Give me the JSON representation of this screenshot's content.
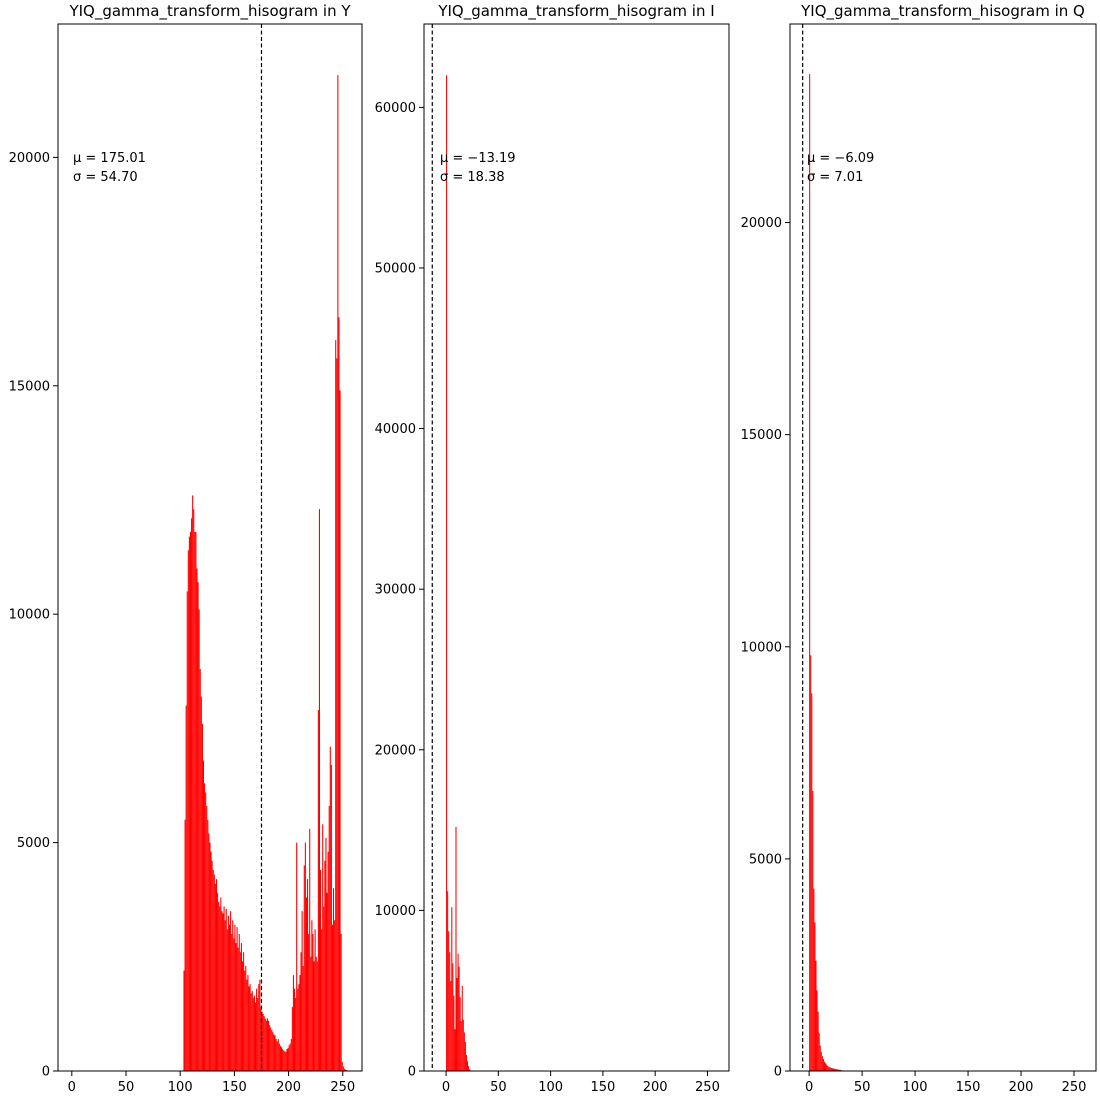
{
  "chart_data": [
    {
      "type": "bar",
      "title": "YIQ_gamma_transform_hisogram in Y",
      "xlim": [
        -12.75,
        267.75
      ],
      "ylim": [
        0,
        22920
      ],
      "xticks": [
        0,
        50,
        100,
        150,
        200,
        250
      ],
      "yticks": [
        0,
        5000,
        10000,
        15000,
        20000
      ],
      "mean": 175.01,
      "annotation": [
        "μ = 175.01",
        "σ = 54.70"
      ],
      "bar_color": "#ff0000",
      "mean_line": "dashed",
      "bins": [
        [
          103,
          2200
        ],
        [
          104,
          5500
        ],
        [
          105,
          8000
        ],
        [
          106,
          10500
        ],
        [
          107,
          11400
        ],
        [
          108,
          11700
        ],
        [
          109,
          11800
        ],
        [
          110,
          12100
        ],
        [
          111,
          12600
        ],
        [
          112,
          12300
        ],
        [
          113,
          11800
        ],
        [
          114,
          11800
        ],
        [
          115,
          11000
        ],
        [
          116,
          10700
        ],
        [
          117,
          10100
        ],
        [
          118,
          8800
        ],
        [
          119,
          8200
        ],
        [
          120,
          7600
        ],
        [
          121,
          6800
        ],
        [
          122,
          6300
        ],
        [
          123,
          6100
        ],
        [
          124,
          5800
        ],
        [
          125,
          5500
        ],
        [
          126,
          5200
        ],
        [
          127,
          5000
        ],
        [
          128,
          4800
        ],
        [
          129,
          4600
        ],
        [
          130,
          4400
        ],
        [
          131,
          4300
        ],
        [
          132,
          4100
        ],
        [
          133,
          4200
        ],
        [
          134,
          3900
        ],
        [
          135,
          3700
        ],
        [
          136,
          3600
        ],
        [
          137,
          3800
        ],
        [
          138,
          3500
        ],
        [
          139,
          3450
        ],
        [
          140,
          3600
        ],
        [
          141,
          3300
        ],
        [
          142,
          3550
        ],
        [
          143,
          3100
        ],
        [
          144,
          3400
        ],
        [
          145,
          3200
        ],
        [
          146,
          3500
        ],
        [
          147,
          3000
        ],
        [
          148,
          3300
        ],
        [
          149,
          2900
        ],
        [
          150,
          3200
        ],
        [
          151,
          2800
        ],
        [
          152,
          3150
        ],
        [
          153,
          2700
        ],
        [
          154,
          3000
        ],
        [
          155,
          2600
        ],
        [
          156,
          2800
        ],
        [
          157,
          2400
        ],
        [
          158,
          2600
        ],
        [
          159,
          2200
        ],
        [
          160,
          2300
        ],
        [
          161,
          2000
        ],
        [
          162,
          2100
        ],
        [
          163,
          1850
        ],
        [
          164,
          1900
        ],
        [
          165,
          1700
        ],
        [
          166,
          1750
        ],
        [
          167,
          1600
        ],
        [
          168,
          1650
        ],
        [
          169,
          1500
        ],
        [
          170,
          1800
        ],
        [
          171,
          1600
        ],
        [
          172,
          1900
        ],
        [
          173,
          2000
        ],
        [
          174,
          1400
        ],
        [
          175,
          1300
        ],
        [
          176,
          1250
        ],
        [
          177,
          1200
        ],
        [
          178,
          1150
        ],
        [
          179,
          1100
        ],
        [
          180,
          1150
        ],
        [
          181,
          1100
        ],
        [
          182,
          1000
        ],
        [
          183,
          950
        ],
        [
          184,
          900
        ],
        [
          185,
          850
        ],
        [
          186,
          800
        ],
        [
          187,
          780
        ],
        [
          188,
          700
        ],
        [
          189,
          650
        ],
        [
          190,
          700
        ],
        [
          191,
          600
        ],
        [
          192,
          550
        ],
        [
          193,
          520
        ],
        [
          194,
          480
        ],
        [
          195,
          450
        ],
        [
          196,
          430
        ],
        [
          197,
          420
        ],
        [
          198,
          480
        ],
        [
          199,
          500
        ],
        [
          200,
          560
        ],
        [
          201,
          600
        ],
        [
          202,
          700
        ],
        [
          203,
          1400
        ],
        [
          204,
          2100
        ],
        [
          205,
          1800
        ],
        [
          206,
          1600
        ],
        [
          207,
          5000
        ],
        [
          208,
          1800
        ],
        [
          209,
          1900
        ],
        [
          210,
          2100
        ],
        [
          211,
          2600
        ],
        [
          212,
          3500
        ],
        [
          213,
          2300
        ],
        [
          214,
          4500
        ],
        [
          215,
          5000
        ],
        [
          216,
          3800
        ],
        [
          217,
          4200
        ],
        [
          218,
          3000
        ],
        [
          219,
          5300
        ],
        [
          220,
          2500
        ],
        [
          221,
          3300
        ],
        [
          222,
          3000
        ],
        [
          223,
          2400
        ],
        [
          224,
          3100
        ],
        [
          225,
          2500
        ],
        [
          226,
          2400
        ],
        [
          227,
          7900
        ],
        [
          228,
          12300
        ],
        [
          229,
          4400
        ],
        [
          230,
          3100
        ],
        [
          231,
          5400
        ],
        [
          232,
          3600
        ],
        [
          233,
          4600
        ],
        [
          234,
          5100
        ],
        [
          235,
          3900
        ],
        [
          236,
          4800
        ],
        [
          237,
          5800
        ],
        [
          238,
          7100
        ],
        [
          239,
          6700
        ],
        [
          240,
          3200
        ],
        [
          241,
          4000
        ],
        [
          242,
          3300
        ],
        [
          243,
          16000
        ],
        [
          244,
          15600
        ],
        [
          245,
          21800
        ],
        [
          246,
          16500
        ],
        [
          247,
          14900
        ],
        [
          248,
          3000
        ],
        [
          249,
          200
        ],
        [
          250,
          100
        ],
        [
          251,
          50
        ],
        [
          252,
          30
        ],
        [
          253,
          20
        ],
        [
          254,
          10
        ],
        [
          255,
          10
        ]
      ]
    },
    {
      "type": "bar",
      "title": "YIQ_gamma_transform_hisogram in I",
      "xlim": [
        -21.1,
        270.6
      ],
      "ylim": [
        0,
        65190
      ],
      "xticks": [
        0,
        50,
        100,
        150,
        200,
        250
      ],
      "yticks": [
        0,
        10000,
        20000,
        30000,
        40000,
        50000,
        60000
      ],
      "mean": -13.19,
      "annotation": [
        "μ = −13.19",
        "σ = 18.38"
      ],
      "bar_color": "#ff0000",
      "mean_line": "dashed",
      "bins": [
        [
          0,
          62000
        ],
        [
          1,
          11200
        ],
        [
          2,
          8700
        ],
        [
          3,
          7400
        ],
        [
          4,
          5600
        ],
        [
          5,
          10200
        ],
        [
          6,
          6700
        ],
        [
          7,
          4700
        ],
        [
          8,
          2600
        ],
        [
          9,
          15200
        ],
        [
          10,
          5800
        ],
        [
          11,
          7300
        ],
        [
          12,
          6500
        ],
        [
          13,
          4600
        ],
        [
          14,
          3100
        ],
        [
          15,
          5300
        ],
        [
          16,
          3200
        ],
        [
          17,
          2400
        ],
        [
          18,
          1800
        ],
        [
          19,
          1000
        ],
        [
          20,
          600
        ],
        [
          21,
          300
        ],
        [
          22,
          100
        ],
        [
          23,
          40
        ]
      ]
    },
    {
      "type": "bar",
      "title": "YIQ_gamma_transform_hisogram in Q",
      "xlim": [
        -18.05,
        270.75
      ],
      "ylim": [
        0,
        24680
      ],
      "xticks": [
        0,
        50,
        100,
        150,
        200,
        250
      ],
      "yticks": [
        0,
        5000,
        10000,
        15000,
        20000
      ],
      "mean": -6.09,
      "annotation": [
        "μ = −6.09",
        "σ = 7.01"
      ],
      "bar_color": "#ff0000",
      "mean_line": "dashed",
      "bins": [
        [
          0,
          23500
        ],
        [
          1,
          9800
        ],
        [
          2,
          8900
        ],
        [
          3,
          6600
        ],
        [
          4,
          4300
        ],
        [
          5,
          3500
        ],
        [
          6,
          2600
        ],
        [
          7,
          1900
        ],
        [
          8,
          1400
        ],
        [
          9,
          900
        ],
        [
          10,
          600
        ],
        [
          11,
          450
        ],
        [
          12,
          350
        ],
        [
          13,
          280
        ],
        [
          14,
          220
        ],
        [
          15,
          180
        ],
        [
          16,
          150
        ],
        [
          17,
          120
        ],
        [
          18,
          100
        ],
        [
          19,
          90
        ],
        [
          20,
          80
        ],
        [
          21,
          70
        ],
        [
          22,
          60
        ],
        [
          23,
          55
        ],
        [
          24,
          50
        ],
        [
          25,
          45
        ],
        [
          26,
          40
        ],
        [
          27,
          35
        ],
        [
          28,
          30
        ],
        [
          29,
          25
        ],
        [
          30,
          20
        ],
        [
          32,
          15
        ],
        [
          34,
          10
        ],
        [
          36,
          8
        ],
        [
          38,
          5
        ],
        [
          40,
          3
        ]
      ]
    }
  ]
}
